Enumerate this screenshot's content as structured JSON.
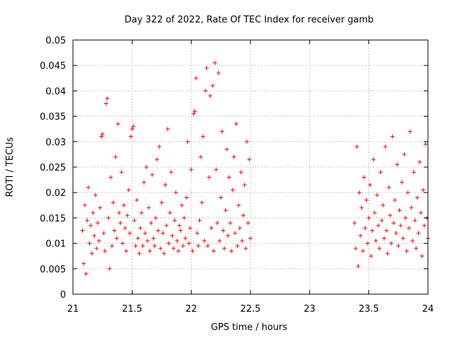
{
  "chart_data": {
    "type": "scatter",
    "title": "Day 322 of 2022, Rate Of TEC Index for receiver gamb",
    "xlabel": "GPS time / hours",
    "ylabel": "ROTI / TECUs",
    "xlim": [
      21,
      24
    ],
    "ylim": [
      0,
      0.05
    ],
    "x_ticks": [
      "21",
      "21.5",
      "22",
      "22.5",
      "23",
      "23.5",
      "24"
    ],
    "y_ticks": [
      "0",
      "0.005",
      "0.01",
      "0.015",
      "0.02",
      "0.025",
      "0.03",
      "0.035",
      "0.04",
      "0.045",
      "0.05"
    ],
    "grid": true,
    "marker": "+",
    "colors": {
      "series": "#ff0000",
      "axes": "#000000",
      "grid": "#a0a0a0"
    },
    "series": [
      {
        "values": [
          [
            21.08,
            0.0125
          ],
          [
            21.09,
            0.006
          ],
          [
            21.1,
            0.0175
          ],
          [
            21.11,
            0.004
          ],
          [
            21.12,
            0.0145
          ],
          [
            21.13,
            0.021
          ],
          [
            21.14,
            0.01
          ],
          [
            21.15,
            0.0135
          ],
          [
            21.16,
            0.008
          ],
          [
            21.17,
            0.016
          ],
          [
            21.18,
            0.0115
          ],
          [
            21.19,
            0.0195
          ],
          [
            21.2,
            0.009
          ],
          [
            21.21,
            0.014
          ],
          [
            21.22,
            0.0105
          ],
          [
            21.23,
            0.017
          ],
          [
            21.24,
            0.031
          ],
          [
            21.25,
            0.0315
          ],
          [
            21.26,
            0.012
          ],
          [
            21.27,
            0.0085
          ],
          [
            21.28,
            0.0375
          ],
          [
            21.29,
            0.0385
          ],
          [
            21.3,
            0.015
          ],
          [
            21.31,
            0.005
          ],
          [
            21.32,
            0.023
          ],
          [
            21.33,
            0.0095
          ],
          [
            21.34,
            0.018
          ],
          [
            21.35,
            0.0125
          ],
          [
            21.36,
            0.027
          ],
          [
            21.37,
            0.011
          ],
          [
            21.38,
            0.0335
          ],
          [
            21.39,
            0.016
          ],
          [
            21.4,
            0.014
          ],
          [
            21.41,
            0.024
          ],
          [
            21.42,
            0.01
          ],
          [
            21.43,
            0.0175
          ],
          [
            21.44,
            0.013
          ],
          [
            21.45,
            0.0085
          ],
          [
            21.46,
            0.0155
          ],
          [
            21.47,
            0.0205
          ],
          [
            21.48,
            0.012
          ],
          [
            21.49,
            0.031
          ],
          [
            21.5,
            0.0325
          ],
          [
            21.51,
            0.033
          ],
          [
            21.52,
            0.0145
          ],
          [
            21.53,
            0.0095
          ],
          [
            21.54,
            0.0185
          ],
          [
            21.55,
            0.011
          ],
          [
            21.56,
            0.008
          ],
          [
            21.57,
            0.013
          ],
          [
            21.58,
            0.016
          ],
          [
            21.59,
            0.0095
          ],
          [
            21.6,
            0.022
          ],
          [
            21.61,
            0.012
          ],
          [
            21.62,
            0.025
          ],
          [
            21.63,
            0.0105
          ],
          [
            21.64,
            0.017
          ],
          [
            21.65,
            0.0085
          ],
          [
            21.66,
            0.014
          ],
          [
            21.67,
            0.0235
          ],
          [
            21.68,
            0.011
          ],
          [
            21.69,
            0.0095
          ],
          [
            21.7,
            0.015
          ],
          [
            21.71,
            0.0265
          ],
          [
            21.72,
            0.0125
          ],
          [
            21.73,
            0.029
          ],
          [
            21.74,
            0.009
          ],
          [
            21.75,
            0.018
          ],
          [
            21.76,
            0.012
          ],
          [
            21.77,
            0.008
          ],
          [
            21.78,
            0.0215
          ],
          [
            21.79,
            0.0135
          ],
          [
            21.8,
            0.0325
          ],
          [
            21.81,
            0.01
          ],
          [
            21.82,
            0.016
          ],
          [
            21.83,
            0.024
          ],
          [
            21.84,
            0.0115
          ],
          [
            21.85,
            0.009
          ],
          [
            21.86,
            0.0145
          ],
          [
            21.87,
            0.02
          ],
          [
            21.88,
            0.0105
          ],
          [
            21.89,
            0.0085
          ],
          [
            21.9,
            0.0135
          ],
          [
            21.91,
            0.0125
          ],
          [
            21.92,
            0.0175
          ],
          [
            21.93,
            0.0095
          ],
          [
            21.94,
            0.015
          ],
          [
            21.95,
            0.011
          ],
          [
            21.96,
            0.019
          ],
          [
            21.97,
            0.03
          ],
          [
            21.98,
            0.01
          ],
          [
            21.99,
            0.013
          ],
          [
            22.0,
            0.0245
          ],
          [
            22.01,
            0.0085
          ],
          [
            22.02,
            0.0355
          ],
          [
            22.03,
            0.036
          ],
          [
            22.04,
            0.0425
          ],
          [
            22.05,
            0.012
          ],
          [
            22.06,
            0.0095
          ],
          [
            22.07,
            0.0145
          ],
          [
            22.08,
            0.027
          ],
          [
            22.09,
            0.018
          ],
          [
            22.1,
            0.031
          ],
          [
            22.11,
            0.0105
          ],
          [
            22.12,
            0.04
          ],
          [
            22.13,
            0.0445
          ],
          [
            22.14,
            0.0095
          ],
          [
            22.15,
            0.023
          ],
          [
            22.16,
            0.039
          ],
          [
            22.17,
            0.013
          ],
          [
            22.18,
            0.041
          ],
          [
            22.19,
            0.0085
          ],
          [
            22.2,
            0.0455
          ],
          [
            22.21,
            0.0245
          ],
          [
            22.22,
            0.014
          ],
          [
            22.23,
            0.0435
          ],
          [
            22.24,
            0.0105
          ],
          [
            22.25,
            0.019
          ],
          [
            22.26,
            0.032
          ],
          [
            22.27,
            0.0125
          ],
          [
            22.28,
            0.009
          ],
          [
            22.29,
            0.0165
          ],
          [
            22.3,
            0.0285
          ],
          [
            22.31,
            0.0115
          ],
          [
            22.32,
            0.023
          ],
          [
            22.33,
            0.014
          ],
          [
            22.34,
            0.0085
          ],
          [
            22.35,
            0.0205
          ],
          [
            22.36,
            0.027
          ],
          [
            22.37,
            0.012
          ],
          [
            22.38,
            0.0335
          ],
          [
            22.39,
            0.0095
          ],
          [
            22.4,
            0.0175
          ],
          [
            22.41,
            0.013
          ],
          [
            22.42,
            0.024
          ],
          [
            22.43,
            0.0105
          ],
          [
            22.44,
            0.0155
          ],
          [
            22.45,
            0.0215
          ],
          [
            22.46,
            0.009
          ],
          [
            22.47,
            0.03
          ],
          [
            22.48,
            0.014
          ],
          [
            22.49,
            0.0265
          ],
          [
            22.5,
            0.011
          ],
          [
            23.38,
            0.014
          ],
          [
            23.39,
            0.009
          ],
          [
            23.4,
            0.029
          ],
          [
            23.41,
            0.0055
          ],
          [
            23.42,
            0.02
          ],
          [
            23.43,
            0.0115
          ],
          [
            23.44,
            0.017
          ],
          [
            23.45,
            0.0085
          ],
          [
            23.46,
            0.023
          ],
          [
            23.47,
            0.013
          ],
          [
            23.48,
            0.0185
          ],
          [
            23.49,
            0.01
          ],
          [
            23.5,
            0.015
          ],
          [
            23.51,
            0.0215
          ],
          [
            23.52,
            0.0075
          ],
          [
            23.53,
            0.0125
          ],
          [
            23.54,
            0.0265
          ],
          [
            23.55,
            0.016
          ],
          [
            23.56,
            0.0105
          ],
          [
            23.57,
            0.0195
          ],
          [
            23.58,
            0.0135
          ],
          [
            23.59,
            0.009
          ],
          [
            23.6,
            0.024
          ],
          [
            23.61,
            0.0145
          ],
          [
            23.62,
            0.0175
          ],
          [
            23.63,
            0.011
          ],
          [
            23.64,
            0.029
          ],
          [
            23.65,
            0.0125
          ],
          [
            23.66,
            0.008
          ],
          [
            23.67,
            0.021
          ],
          [
            23.68,
            0.0155
          ],
          [
            23.69,
            0.01
          ],
          [
            23.7,
            0.031
          ],
          [
            23.71,
            0.014
          ],
          [
            23.72,
            0.0185
          ],
          [
            23.73,
            0.012
          ],
          [
            23.74,
            0.0255
          ],
          [
            23.75,
            0.0095
          ],
          [
            23.76,
            0.0165
          ],
          [
            23.77,
            0.0135
          ],
          [
            23.78,
            0.022
          ],
          [
            23.79,
            0.011
          ],
          [
            23.8,
            0.0275
          ],
          [
            23.81,
            0.015
          ],
          [
            23.82,
            0.0085
          ],
          [
            23.83,
            0.02
          ],
          [
            23.84,
            0.013
          ],
          [
            23.85,
            0.032
          ],
          [
            23.86,
            0.017
          ],
          [
            23.87,
            0.0105
          ],
          [
            23.88,
            0.024
          ],
          [
            23.89,
            0.0145
          ],
          [
            23.9,
            0.009
          ],
          [
            23.91,
            0.019
          ],
          [
            23.92,
            0.012
          ],
          [
            23.93,
            0.026
          ],
          [
            23.94,
            0.016
          ],
          [
            23.95,
            0.0075
          ],
          [
            23.96,
            0.0205
          ],
          [
            23.97,
            0.0135
          ],
          [
            23.98,
            0.0295
          ],
          [
            23.99,
            0.015
          ],
          [
            24.0,
            0.011
          ]
        ]
      }
    ]
  }
}
